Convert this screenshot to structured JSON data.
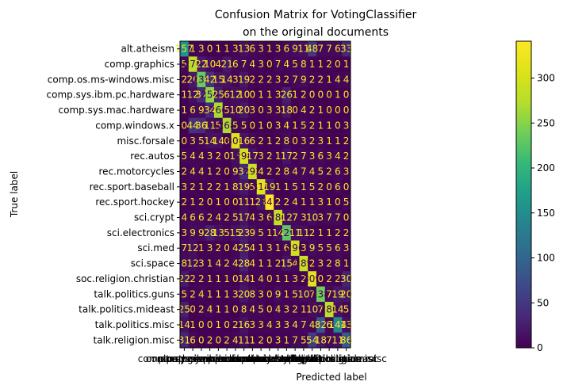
{
  "chart_data": {
    "type": "heatmap",
    "title_line1": "Confusion Matrix for VotingClassifier",
    "title_line2": "on the original documents",
    "xlabel": "Predicted label",
    "ylabel": "True label",
    "labels": [
      "alt.atheism",
      "comp.graphics",
      "comp.os.ms-windows.misc",
      "comp.sys.ibm.pc.hardware",
      "comp.sys.mac.hardware",
      "comp.windows.x",
      "misc.forsale",
      "rec.autos",
      "rec.motorcycles",
      "rec.sport.baseball",
      "rec.sport.hockey",
      "sci.crypt",
      "sci.electronics",
      "sci.med",
      "sci.space",
      "soc.religion.christian",
      "talk.politics.guns",
      "talk.politics.mideast",
      "talk.politics.misc",
      "talk.religion.misc"
    ],
    "matrix": [
      [
        157,
        1,
        3,
        0,
        1,
        1,
        3,
        13,
        6,
        3,
        1,
        3,
        6,
        9,
        11,
        48,
        7,
        7,
        6,
        33
      ],
      [
        5,
        278,
        22,
        10,
        4,
        21,
        6,
        7,
        4,
        3,
        0,
        7,
        4,
        5,
        8,
        1,
        1,
        2,
        0,
        1
      ],
      [
        2,
        20,
        235,
        42,
        15,
        14,
        3,
        19,
        2,
        2,
        2,
        3,
        2,
        7,
        9,
        2,
        2,
        1,
        4,
        4
      ],
      [
        1,
        12,
        37,
        254,
        25,
        6,
        12,
        10,
        0,
        1,
        1,
        3,
        26,
        1,
        2,
        0,
        0,
        0,
        1,
        0
      ],
      [
        1,
        6,
        9,
        34,
        266,
        5,
        10,
        20,
        3,
        0,
        3,
        3,
        18,
        0,
        4,
        2,
        1,
        0,
        0,
        0
      ],
      [
        0,
        44,
        36,
        11,
        5,
        268,
        5,
        5,
        0,
        1,
        0,
        3,
        4,
        1,
        5,
        2,
        1,
        1,
        0,
        3
      ],
      [
        0,
        3,
        5,
        14,
        14,
        0,
        307,
        16,
        6,
        2,
        1,
        2,
        8,
        0,
        3,
        2,
        3,
        1,
        1,
        2
      ],
      [
        5,
        4,
        4,
        3,
        2,
        0,
        13,
        298,
        17,
        3,
        2,
        1,
        17,
        2,
        7,
        3,
        6,
        3,
        4,
        2
      ],
      [
        2,
        4,
        4,
        1,
        2,
        0,
        9,
        37,
        292,
        4,
        2,
        2,
        8,
        4,
        7,
        4,
        5,
        2,
        6,
        3
      ],
      [
        3,
        2,
        1,
        2,
        2,
        1,
        8,
        19,
        5,
        314,
        19,
        1,
        1,
        5,
        1,
        5,
        2,
        0,
        6,
        0
      ],
      [
        2,
        1,
        2,
        0,
        1,
        0,
        0,
        11,
        1,
        21,
        341,
        2,
        2,
        4,
        1,
        1,
        3,
        1,
        0,
        5
      ],
      [
        4,
        6,
        6,
        2,
        4,
        2,
        5,
        17,
        4,
        3,
        6,
        286,
        12,
        7,
        3,
        10,
        3,
        7,
        7,
        0
      ],
      [
        3,
        9,
        9,
        28,
        13,
        5,
        15,
        23,
        9,
        5,
        1,
        14,
        229,
        11,
        11,
        2,
        1,
        1,
        2,
        2
      ],
      [
        7,
        12,
        1,
        3,
        2,
        0,
        4,
        25,
        4,
        1,
        3,
        1,
        6,
        296,
        3,
        9,
        5,
        5,
        6,
        3
      ],
      [
        8,
        12,
        3,
        1,
        4,
        2,
        4,
        28,
        4,
        1,
        1,
        2,
        15,
        4,
        289,
        2,
        3,
        2,
        8,
        1
      ],
      [
        22,
        2,
        2,
        1,
        1,
        1,
        0,
        14,
        1,
        4,
        0,
        1,
        1,
        3,
        2,
        309,
        0,
        2,
        2,
        30
      ],
      [
        5,
        2,
        4,
        1,
        1,
        1,
        3,
        20,
        8,
        3,
        0,
        9,
        1,
        5,
        10,
        7,
        238,
        7,
        19,
        20
      ],
      [
        25,
        0,
        2,
        4,
        1,
        1,
        0,
        8,
        4,
        5,
        0,
        4,
        3,
        2,
        1,
        10,
        7,
        280,
        14,
        5
      ],
      [
        14,
        1,
        0,
        0,
        1,
        0,
        2,
        16,
        3,
        3,
        4,
        3,
        3,
        4,
        7,
        4,
        82,
        6,
        144,
        13
      ],
      [
        31,
        6,
        0,
        2,
        0,
        2,
        4,
        11,
        1,
        2,
        0,
        3,
        1,
        7,
        5,
        54,
        18,
        7,
        11,
        86
      ]
    ],
    "vmin": 0,
    "vmax": 341,
    "colormap": "viridis",
    "colorbar_ticks": [
      0,
      50,
      100,
      150,
      200,
      250,
      300
    ],
    "text_color_light": "#fde725",
    "text_color_dark": "#440154"
  }
}
